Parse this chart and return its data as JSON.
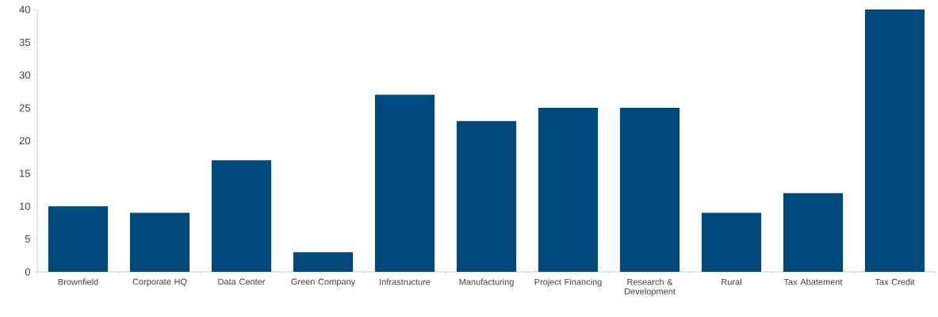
{
  "chart_data": {
    "type": "bar",
    "categories": [
      "Brownfield",
      "Corporate HQ",
      "Data Center",
      "Green Company",
      "Infrastructure",
      "Manufacturing",
      "Project Financing",
      "Research & Development",
      "Rural",
      "Tax Abatement",
      "Tax Credit"
    ],
    "values": [
      10,
      9,
      17,
      3,
      27,
      23,
      25,
      25,
      9,
      12,
      40
    ],
    "color": "#00497a",
    "ylim": [
      0,
      40
    ],
    "yticks": [
      0,
      5,
      10,
      15,
      20,
      25,
      30,
      35,
      40
    ],
    "grid": false
  }
}
